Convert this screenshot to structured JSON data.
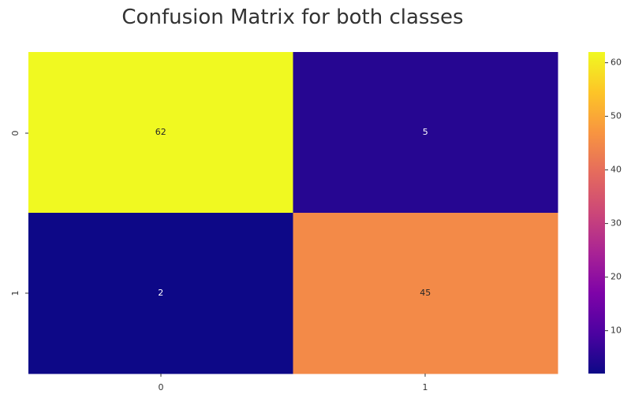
{
  "chart_data": {
    "type": "heatmap",
    "title": "Confusion Matrix for both classes",
    "xlabel": "",
    "ylabel": "",
    "x_categories": [
      "0",
      "1"
    ],
    "y_categories": [
      "0",
      "1"
    ],
    "values": [
      [
        62,
        5
      ],
      [
        2,
        45
      ]
    ],
    "annotations": [
      [
        "62",
        "5"
      ],
      [
        "2",
        "45"
      ]
    ],
    "colormap": "plasma",
    "colorbar": {
      "range": [
        2,
        62
      ],
      "ticks": [
        10,
        20,
        30,
        40,
        50,
        60
      ],
      "tick_labels": [
        "10",
        "20",
        "30",
        "40",
        "50",
        "60"
      ]
    },
    "grid": false,
    "legend": "colorbar-right"
  }
}
